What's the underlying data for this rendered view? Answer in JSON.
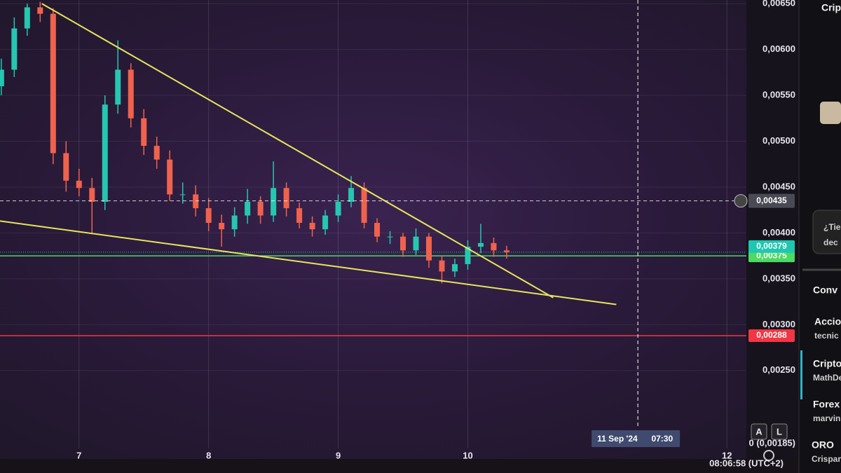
{
  "chart_data": {
    "type": "candlestick",
    "x": [
      6.4,
      6.5,
      6.6,
      6.7,
      6.8,
      6.9,
      7.0,
      7.1,
      7.2,
      7.3,
      7.4,
      7.5,
      7.6,
      7.7,
      7.8,
      7.9,
      8.0,
      8.1,
      8.2,
      8.3,
      8.4,
      8.5,
      8.6,
      8.7,
      8.8,
      8.9,
      9.0,
      9.1,
      9.2,
      9.3,
      9.4,
      9.5,
      9.6,
      9.7,
      9.8,
      9.9,
      10.0,
      10.1,
      10.2,
      10.3
    ],
    "open": [
      0.0056,
      0.00578,
      0.00623,
      0.00646,
      0.00639,
      0.00487,
      0.00457,
      0.00449,
      0.00434,
      0.0054,
      0.00578,
      0.00525,
      0.00495,
      0.0048,
      0.00442,
      0.00442,
      0.00427,
      0.00411,
      0.00404,
      0.00419,
      0.00434,
      0.00419,
      0.00449,
      0.00427,
      0.00411,
      0.00404,
      0.00419,
      0.00434,
      0.00449,
      0.00411,
      0.00396,
      0.00396,
      0.00381,
      0.00396,
      0.0037,
      0.00358,
      0.00366,
      0.00385,
      0.00389,
      0.00381
    ],
    "high": [
      0.0059,
      0.00635,
      0.0065,
      0.00652,
      0.00645,
      0.005,
      0.0047,
      0.0046,
      0.0055,
      0.0061,
      0.00585,
      0.00535,
      0.00505,
      0.0049,
      0.00455,
      0.00452,
      0.00438,
      0.0042,
      0.00428,
      0.00448,
      0.0044,
      0.00478,
      0.00455,
      0.00433,
      0.00418,
      0.00425,
      0.00442,
      0.00462,
      0.00455,
      0.00416,
      0.00402,
      0.004,
      0.00405,
      0.004,
      0.00375,
      0.00372,
      0.00392,
      0.0041,
      0.00395,
      0.00386
    ],
    "low": [
      0.0055,
      0.0057,
      0.00615,
      0.0063,
      0.00475,
      0.00445,
      0.0044,
      0.004,
      0.00425,
      0.0053,
      0.00515,
      0.00485,
      0.0047,
      0.00435,
      0.00432,
      0.00418,
      0.00402,
      0.00385,
      0.00396,
      0.0041,
      0.0041,
      0.00412,
      0.00418,
      0.00405,
      0.00396,
      0.00398,
      0.00412,
      0.00428,
      0.00405,
      0.0039,
      0.00388,
      0.00374,
      0.00376,
      0.00362,
      0.00345,
      0.00352,
      0.0036,
      0.00378,
      0.00374,
      0.00372
    ],
    "close": [
      0.00578,
      0.00623,
      0.00646,
      0.00639,
      0.00487,
      0.00457,
      0.00449,
      0.00434,
      0.0054,
      0.00578,
      0.00525,
      0.00495,
      0.0048,
      0.00442,
      0.00442,
      0.00427,
      0.00411,
      0.00404,
      0.00419,
      0.00434,
      0.00419,
      0.00449,
      0.00427,
      0.00411,
      0.00404,
      0.00419,
      0.00434,
      0.00449,
      0.00411,
      0.00396,
      0.00396,
      0.00381,
      0.00396,
      0.0037,
      0.00358,
      0.00366,
      0.00385,
      0.00389,
      0.00381,
      0.00379
    ],
    "up_color": "#26c6b0",
    "down_color": "#f0624d",
    "xlim": [
      6.39,
      12.15
    ],
    "xticks": [
      7,
      8,
      9,
      10,
      12
    ],
    "ylim": [
      0.00165,
      0.00654
    ],
    "yticks": [
      {
        "value": 0.0065,
        "label": "0,00650"
      },
      {
        "value": 0.006,
        "label": "0,00600"
      },
      {
        "value": 0.0055,
        "label": "0,00550"
      },
      {
        "value": 0.005,
        "label": "0,00500"
      },
      {
        "value": 0.0045,
        "label": "0,00450"
      },
      {
        "value": 0.004,
        "label": "0,00400"
      },
      {
        "value": 0.0035,
        "label": "0,00350"
      },
      {
        "value": 0.003,
        "label": "0,00300"
      },
      {
        "value": 0.0025,
        "label": "0,00250"
      }
    ],
    "grid": true,
    "trendlines": [
      {
        "color": "#e6e65a",
        "x": [
          6.713,
          10.659
        ],
        "y": [
          0.0065,
          0.003295
        ]
      },
      {
        "color": "#e6e65a",
        "x": [
          6.39,
          11.146
        ],
        "y": [
          0.00413,
          0.00322
        ]
      }
    ],
    "levels": [
      {
        "value": 0.00375,
        "label": "0,00375",
        "color": "#4cd964"
      },
      {
        "value": 0.00288,
        "label": "0,00288",
        "color": "#f23645"
      }
    ],
    "last_price": {
      "value": 0.00379,
      "label": "0,00379",
      "color": "#1fc7b0"
    },
    "crosshair": {
      "time": 11.3125,
      "date_label": "11 Sep '24",
      "clock_label": "07:30",
      "price": 0.00435,
      "price_label": "0,00435"
    }
  },
  "ui": {
    "axis_bottom_label": "0 (0,00185)",
    "buttons": [
      "A",
      "L"
    ],
    "clock": "08:06:58 (UTC+2)",
    "sidebar": {
      "header": "Crip",
      "message": [
        "¿Tie",
        "dec"
      ],
      "section": "Conv",
      "items": [
        {
          "title": "Accio",
          "subtitle": "tecnic"
        },
        {
          "title": "Cripto",
          "subtitle": "MathDe"
        },
        {
          "title": "Forex",
          "subtitle": "marvin"
        },
        {
          "title": "ORO",
          "subtitle": "Crispar"
        }
      ]
    }
  }
}
